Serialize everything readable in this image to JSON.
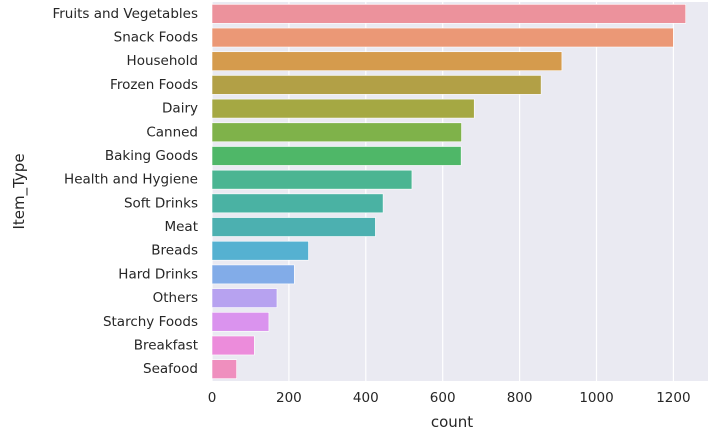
{
  "chart_data": {
    "type": "bar",
    "orientation": "horizontal",
    "xlabel": "count",
    "ylabel": "Item_Type",
    "xlim": [
      0,
      1290
    ],
    "xticks": [
      0,
      200,
      400,
      600,
      800,
      1000,
      1200
    ],
    "grid": true,
    "legend": "none",
    "background_color": "#eaeaf2",
    "grid_color": "#ffffff",
    "categories": [
      "Fruits and Vegetables",
      "Snack Foods",
      "Household",
      "Frozen Foods",
      "Dairy",
      "Canned",
      "Baking Goods",
      "Health and Hygiene",
      "Soft Drinks",
      "Meat",
      "Breads",
      "Hard Drinks",
      "Others",
      "Starchy Foods",
      "Breakfast",
      "Seafood"
    ],
    "values": [
      1232,
      1200,
      910,
      856,
      682,
      649,
      648,
      520,
      445,
      425,
      251,
      214,
      169,
      148,
      110,
      64
    ],
    "colors": [
      "#ec929c",
      "#eb9876",
      "#d59b4d",
      "#b2a046",
      "#a5a843",
      "#7fb24a",
      "#4fb768",
      "#4bb592",
      "#4ab2a3",
      "#4cb0b0",
      "#55b1d1",
      "#82ace8",
      "#b7a2f0",
      "#da93ee",
      "#ec8cdb",
      "#ef8fbe"
    ]
  }
}
